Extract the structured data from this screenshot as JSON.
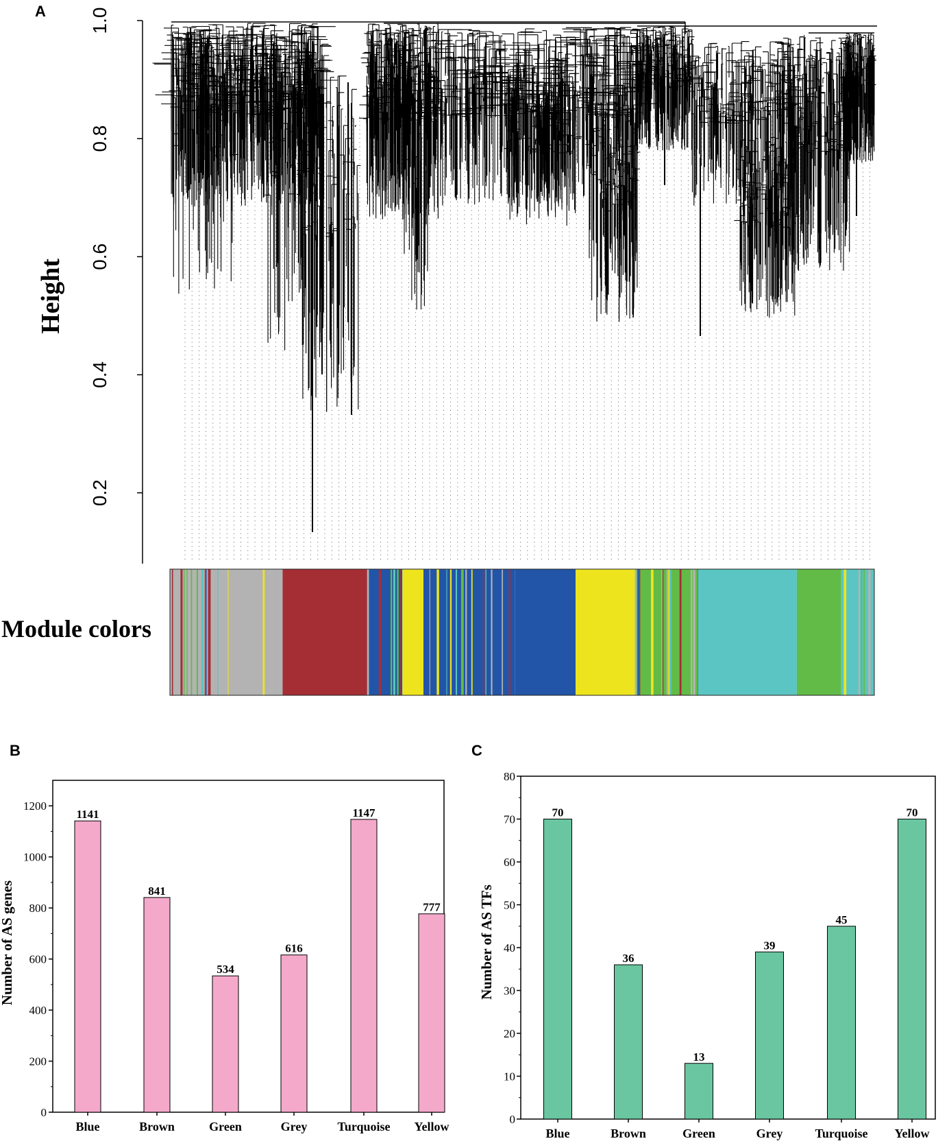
{
  "chart_data": [
    {
      "panel": "A",
      "type": "dendrogram",
      "ylabel": "Height",
      "yticks": [
        "0.2",
        "0.4",
        "0.6",
        "0.8",
        "1.0"
      ],
      "ylim": [
        0.08,
        1.0
      ],
      "color_bar_label": "Module colors",
      "module_colors": {
        "brown": "#a52e35",
        "yellow": "#ede41e",
        "blue": "#2255a8",
        "turquoise": "#5bc5c3",
        "green": "#62bb47",
        "grey": "#b3b3b3"
      },
      "module_blocks": [
        {
          "module": "grey",
          "start": 0.0,
          "end": 0.16,
          "mixed": true
        },
        {
          "module": "brown",
          "start": 0.16,
          "end": 0.28
        },
        {
          "module": "blue",
          "start": 0.28,
          "end": 0.33,
          "mixed": true
        },
        {
          "module": "yellow",
          "start": 0.33,
          "end": 0.36
        },
        {
          "module": "blue",
          "start": 0.36,
          "end": 0.49,
          "mixed": true
        },
        {
          "module": "blue",
          "start": 0.49,
          "end": 0.576
        },
        {
          "module": "yellow",
          "start": 0.576,
          "end": 0.66
        },
        {
          "module": "green",
          "start": 0.66,
          "end": 0.75,
          "mixed": true
        },
        {
          "module": "turquoise",
          "start": 0.75,
          "end": 0.89
        },
        {
          "module": "green",
          "start": 0.89,
          "end": 0.953
        },
        {
          "module": "turquoise",
          "start": 0.953,
          "end": 1.0,
          "mixed": true
        }
      ]
    },
    {
      "panel": "B",
      "type": "bar",
      "categories": [
        "Blue",
        "Brown",
        "Green",
        "Grey",
        "Turquoise",
        "Yellow"
      ],
      "values": [
        1141,
        841,
        534,
        616,
        1147,
        777
      ],
      "value_labels": [
        "1141",
        "841",
        "534",
        "616",
        "1147",
        "777"
      ],
      "ylabel": "Number of AS genes",
      "yticks": [
        "0",
        "200",
        "400",
        "600",
        "800",
        "1000",
        "1200"
      ],
      "ylim": [
        0,
        1300
      ],
      "bar_color": "#f4a9ca"
    },
    {
      "panel": "C",
      "type": "bar",
      "categories": [
        "Blue",
        "Brown",
        "Green",
        "Grey",
        "Turquoise",
        "Yellow"
      ],
      "values": [
        70,
        36,
        13,
        39,
        45,
        70
      ],
      "value_labels": [
        "70",
        "36",
        "13",
        "39",
        "45",
        "70"
      ],
      "ylabel": "Number of AS TFs",
      "yticks": [
        "0",
        "10",
        "20",
        "30",
        "40",
        "50",
        "60",
        "70",
        "80"
      ],
      "ylim": [
        0,
        80
      ],
      "bar_color": "#6ac6a0"
    }
  ]
}
